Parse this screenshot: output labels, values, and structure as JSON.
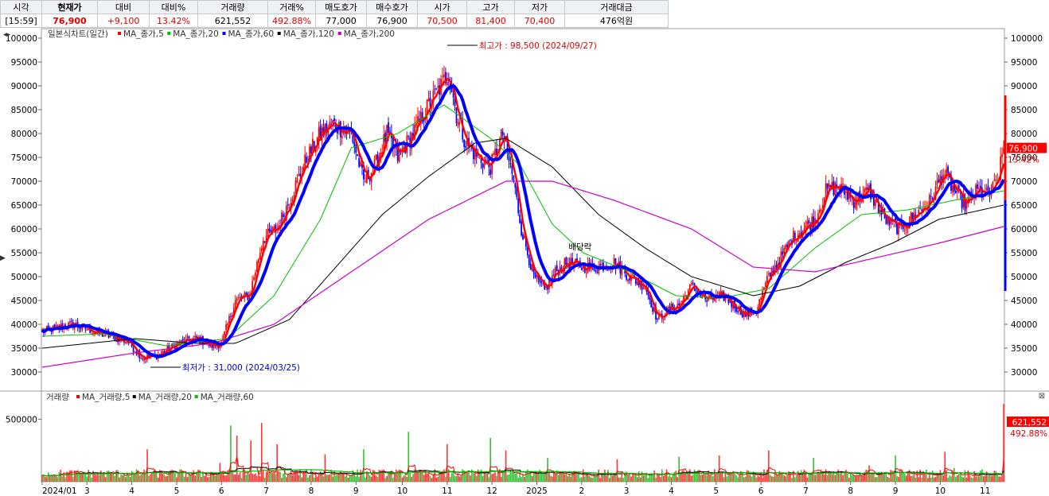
{
  "quote_bar": {
    "headers": [
      "시각",
      "현재가",
      "대비",
      "대비%",
      "거래량",
      "거래%",
      "매도호가",
      "매수호가",
      "시가",
      "고가",
      "저가",
      "거래대금"
    ],
    "values": [
      "[15:59]",
      "76,900",
      "+9,100",
      "13.42%",
      "621,552",
      "492.88%",
      "77,000",
      "76,900",
      "70,500",
      "81,400",
      "70,400",
      "476억원"
    ]
  },
  "chart_data": {
    "type": "candlestick",
    "price_panel": {
      "legend_title": "일본식차트(일간)",
      "ma_legend": [
        "MA_종가,5",
        "MA_종가,20",
        "MA_종가,60",
        "MA_종가,120",
        "MA_종가,200"
      ],
      "ma_colors": [
        "#ff0000",
        "#00c000",
        "#0000ff",
        "#000000",
        "#cc00cc"
      ],
      "y_ticks": [
        "100000",
        "95000",
        "90000",
        "85000",
        "80000",
        "75000",
        "70000",
        "65000",
        "60000",
        "55000",
        "50000",
        "45000",
        "40000",
        "35000",
        "30000"
      ],
      "ylim": [
        26000,
        102000
      ],
      "high_label": "최고가 : 98,500 (2024/09/27)",
      "high_value": 98500,
      "low_label": "최저가 : 31,000 (2024/03/25)",
      "low_value": 31000,
      "event_label": "배당락",
      "last_price_tag": "76,900",
      "last_change_tag": "13.42%",
      "close_anchors": [
        [
          0,
          38500
        ],
        [
          20,
          40000
        ],
        [
          38,
          38000
        ],
        [
          55,
          36500
        ],
        [
          65,
          33000
        ],
        [
          75,
          33500
        ],
        [
          88,
          36000
        ],
        [
          100,
          37000
        ],
        [
          110,
          35500
        ],
        [
          116,
          36000
        ],
        [
          125,
          45000
        ],
        [
          134,
          46000
        ],
        [
          143,
          58000
        ],
        [
          152,
          60000
        ],
        [
          160,
          66000
        ],
        [
          170,
          74000
        ],
        [
          180,
          80000
        ],
        [
          188,
          82000
        ],
        [
          200,
          80000
        ],
        [
          208,
          70000
        ],
        [
          215,
          73000
        ],
        [
          223,
          80000
        ],
        [
          230,
          75000
        ],
        [
          240,
          80000
        ],
        [
          250,
          86000
        ],
        [
          258,
          90000
        ],
        [
          263,
          93000
        ],
        [
          268,
          84000
        ],
        [
          274,
          78000
        ],
        [
          282,
          75000
        ],
        [
          290,
          73000
        ],
        [
          298,
          80000
        ],
        [
          305,
          70000
        ],
        [
          310,
          60000
        ],
        [
          318,
          50000
        ],
        [
          325,
          47000
        ],
        [
          332,
          51000
        ],
        [
          340,
          53000
        ],
        [
          350,
          52000
        ],
        [
          360,
          52000
        ],
        [
          370,
          53000
        ],
        [
          380,
          50000
        ],
        [
          390,
          48000
        ],
        [
          398,
          41000
        ],
        [
          405,
          43000
        ],
        [
          412,
          44000
        ],
        [
          420,
          48000
        ],
        [
          430,
          45000
        ],
        [
          440,
          46000
        ],
        [
          455,
          42000
        ],
        [
          462,
          43000
        ],
        [
          470,
          50000
        ],
        [
          478,
          54000
        ],
        [
          485,
          58000
        ],
        [
          492,
          60000
        ],
        [
          500,
          62000
        ],
        [
          507,
          68000
        ],
        [
          515,
          69000
        ],
        [
          525,
          66000
        ],
        [
          535,
          68000
        ],
        [
          545,
          62000
        ],
        [
          555,
          60000
        ],
        [
          565,
          63000
        ],
        [
          575,
          66000
        ],
        [
          583,
          72000
        ],
        [
          590,
          68000
        ],
        [
          597,
          65000
        ],
        [
          605,
          68000
        ],
        [
          612,
          67000
        ],
        [
          618,
          70000
        ],
        [
          622,
          76900
        ]
      ],
      "ma_anchors": {
        "MA_종가,20": [
          [
            0,
            37500
          ],
          [
            40,
            38000
          ],
          [
            80,
            35500
          ],
          [
            120,
            37000
          ],
          [
            150,
            46000
          ],
          [
            180,
            62000
          ],
          [
            200,
            77000
          ],
          [
            230,
            80000
          ],
          [
            260,
            86000
          ],
          [
            290,
            79000
          ],
          [
            310,
            73000
          ],
          [
            330,
            61000
          ],
          [
            350,
            55000
          ],
          [
            380,
            51000
          ],
          [
            410,
            46000
          ],
          [
            440,
            45500
          ],
          [
            470,
            47500
          ],
          [
            500,
            56000
          ],
          [
            530,
            63000
          ],
          [
            560,
            64000
          ],
          [
            590,
            66000
          ],
          [
            622,
            68000
          ]
        ],
        "MA_종가,120": [
          [
            0,
            35000
          ],
          [
            60,
            37000
          ],
          [
            100,
            36000
          ],
          [
            125,
            36000
          ],
          [
            160,
            41000
          ],
          [
            190,
            52000
          ],
          [
            220,
            63000
          ],
          [
            250,
            71000
          ],
          [
            280,
            78000
          ],
          [
            300,
            79000
          ],
          [
            330,
            73000
          ],
          [
            360,
            63000
          ],
          [
            390,
            56000
          ],
          [
            420,
            50000
          ],
          [
            460,
            46000
          ],
          [
            490,
            48000
          ],
          [
            520,
            53000
          ],
          [
            550,
            57000
          ],
          [
            580,
            62000
          ],
          [
            622,
            65000
          ]
        ],
        "MA_종가,200": [
          [
            0,
            31000
          ],
          [
            60,
            34000
          ],
          [
            110,
            36000
          ],
          [
            150,
            40000
          ],
          [
            200,
            51000
          ],
          [
            250,
            62000
          ],
          [
            300,
            70000
          ],
          [
            330,
            70000
          ],
          [
            370,
            66000
          ],
          [
            420,
            60000
          ],
          [
            460,
            52000
          ],
          [
            500,
            51000
          ],
          [
            540,
            54000
          ],
          [
            580,
            57000
          ],
          [
            622,
            60500
          ]
        ]
      }
    },
    "volume_panel": {
      "legend_title": "거래량",
      "ma_legend": [
        "MA_거래량,5",
        "MA_거래량,20",
        "MA_거래량,60"
      ],
      "ma_colors": [
        "#ff0000",
        "#000000",
        "#00c000"
      ],
      "y_ticks": [
        "500000"
      ],
      "ylim": [
        0,
        700000
      ],
      "last_volume_tag": "621,552",
      "last_volume_pct": "492.88%"
    },
    "x_ticks": [
      "2024/01",
      "3",
      "4",
      "5",
      "6",
      "7",
      "8",
      "9",
      "10",
      "11",
      "12",
      "2025",
      "2",
      "3",
      "4",
      "5",
      "6",
      "7",
      "8",
      "9",
      "10",
      "11"
    ],
    "n_days": 623
  }
}
